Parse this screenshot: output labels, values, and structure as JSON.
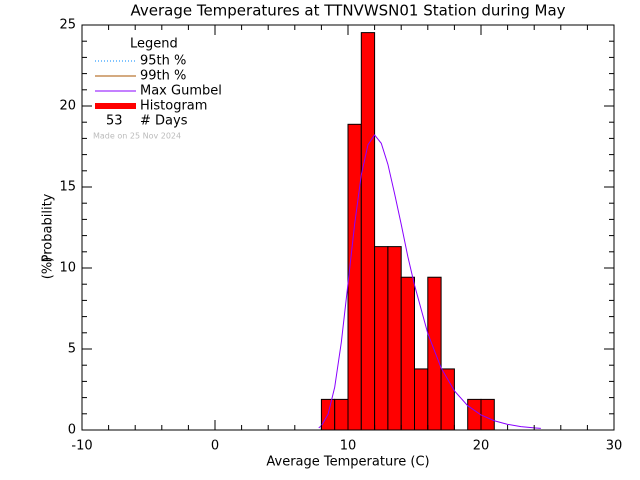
{
  "chart_data": {
    "type": "histogram",
    "title": "Average Temperatures at TTNVWSN01 Station during May",
    "xlabel": "Average Temperature (C)",
    "ylabel": [
      "Probability",
      "(%)"
    ],
    "bins": [
      8,
      9,
      10,
      11,
      12,
      13,
      14,
      15,
      16,
      17,
      18,
      19,
      20,
      21
    ],
    "values": [
      1.89,
      1.89,
      18.87,
      24.53,
      11.32,
      11.32,
      9.43,
      3.77,
      9.43,
      3.77,
      0,
      1.89,
      1.89
    ],
    "color": "#ff0000",
    "curve": {
      "name": "Max Gumbel",
      "color": "#8800ff",
      "x": [
        7.8,
        8,
        8.5,
        9,
        9.5,
        10,
        10.5,
        11,
        11.5,
        12,
        12.5,
        13,
        13.5,
        14,
        14.5,
        15,
        16,
        17,
        18,
        19,
        20,
        21,
        22,
        23,
        24,
        24.5
      ],
      "values": [
        0.13,
        0.26,
        0.97,
        2.64,
        5.43,
        9.04,
        12.71,
        15.75,
        17.6,
        18.21,
        17.7,
        16.4,
        14.6,
        12.7,
        10.7,
        8.95,
        5.96,
        3.83,
        2.42,
        1.5,
        0.93,
        0.57,
        0.35,
        0.21,
        0.13,
        0.1
      ]
    },
    "legend_title": "Legend",
    "legend_entries": [
      {
        "label": "95th %",
        "color": "#0088ff",
        "style": "dotted"
      },
      {
        "label": "99th %",
        "color": "#aa5500",
        "style": "solid"
      },
      {
        "label": "Max Gumbel",
        "color": "#8800ff",
        "style": "solid"
      },
      {
        "label": "Histogram",
        "color": "#ff0000",
        "style": "thick"
      }
    ],
    "days": 53,
    "days_label": "# Days",
    "note": "Made on 25 Nov 2024",
    "xlim": [
      -10,
      30
    ],
    "xticks": [
      -10,
      0,
      10,
      20,
      30
    ],
    "ylim": [
      0,
      25
    ],
    "yticks": [
      0,
      5,
      10,
      15,
      20,
      25
    ]
  }
}
